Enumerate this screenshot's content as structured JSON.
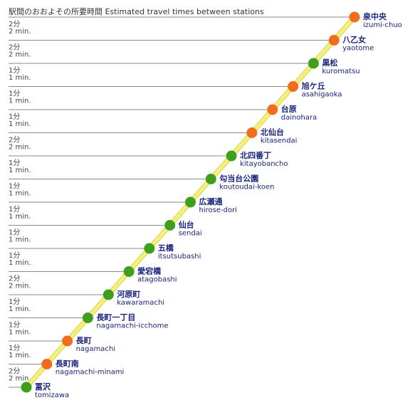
{
  "title": "駅間のおおよその所要時間 Estimated travel times between stations",
  "colors": {
    "line": "#f5f07a",
    "line_edge": "#d9d35a",
    "rapid_stop": "#f26c1d",
    "local_stop": "#3f9e1e",
    "label": "#1a237e",
    "divider": "#8a8a8a"
  },
  "stations": [
    {
      "ja": "泉中央",
      "en": "izumi-chuo",
      "type": "rapid_stop"
    },
    {
      "ja": "八乙女",
      "en": "yaotome",
      "type": "rapid_stop"
    },
    {
      "ja": "黒松",
      "en": "kuromatsu",
      "type": "local_stop"
    },
    {
      "ja": "旭ケ丘",
      "en": "asahigaoka",
      "type": "rapid_stop"
    },
    {
      "ja": "台原",
      "en": "dainohara",
      "type": "rapid_stop"
    },
    {
      "ja": "北仙台",
      "en": "kitasendai",
      "type": "rapid_stop"
    },
    {
      "ja": "北四番丁",
      "en": "kitayobancho",
      "type": "local_stop"
    },
    {
      "ja": "勾当台公園",
      "en": "koutoudai-koen",
      "type": "local_stop"
    },
    {
      "ja": "広瀬通",
      "en": "hirose-dori",
      "type": "local_stop"
    },
    {
      "ja": "仙台",
      "en": "sendai",
      "type": "local_stop"
    },
    {
      "ja": "五橋",
      "en": "itsutsubashi",
      "type": "local_stop"
    },
    {
      "ja": "愛宕橋",
      "en": "atagobashi",
      "type": "local_stop"
    },
    {
      "ja": "河原町",
      "en": "kawaramachi",
      "type": "local_stop"
    },
    {
      "ja": "長町一丁目",
      "en": "nagamachi-icchome",
      "type": "local_stop"
    },
    {
      "ja": "長町",
      "en": "nagamachi",
      "type": "rapid_stop"
    },
    {
      "ja": "長町南",
      "en": "nagamachi-minami",
      "type": "rapid_stop"
    },
    {
      "ja": "冨沢",
      "en": "tomizawa",
      "type": "local_stop"
    }
  ],
  "segments": [
    {
      "ja": "2分",
      "en": "2 min."
    },
    {
      "ja": "2分",
      "en": "2 min."
    },
    {
      "ja": "1分",
      "en": "1 min."
    },
    {
      "ja": "1分",
      "en": "1 min."
    },
    {
      "ja": "1分",
      "en": "1 min."
    },
    {
      "ja": "2分",
      "en": "2 min."
    },
    {
      "ja": "1分",
      "en": "1 min."
    },
    {
      "ja": "1分",
      "en": "1 min."
    },
    {
      "ja": "1分",
      "en": "1 min."
    },
    {
      "ja": "1分",
      "en": "1 min."
    },
    {
      "ja": "1分",
      "en": "1 min."
    },
    {
      "ja": "2分",
      "en": "2 min."
    },
    {
      "ja": "1分",
      "en": "1 min."
    },
    {
      "ja": "1分",
      "en": "1 min."
    },
    {
      "ja": "1分",
      "en": "1 min."
    },
    {
      "ja": "2分",
      "en": "2 min."
    }
  ]
}
